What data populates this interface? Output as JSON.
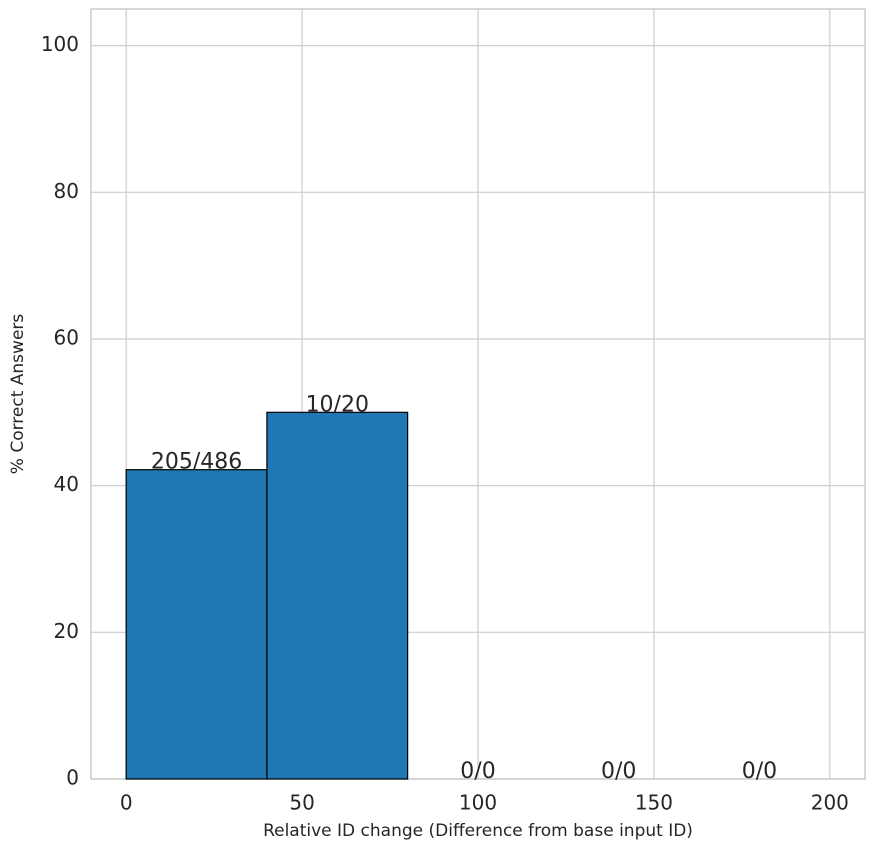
{
  "chart_data": {
    "type": "histogram",
    "x_label": "Relative ID change (Difference from base input ID)",
    "y_label": "% Correct Answers",
    "bins": [
      0,
      40,
      80,
      120,
      160,
      200
    ],
    "values": [
      42.18,
      50,
      0,
      0,
      0
    ],
    "value_labels": [
      "205/486",
      "10/20",
      "0/0",
      "0/0",
      "0/0"
    ],
    "color": "#1f77b4",
    "edge_color": "#000000",
    "xlim": [
      -10,
      210
    ],
    "xticks": [
      0,
      50,
      100,
      150,
      200
    ],
    "ylim": [
      0,
      105
    ],
    "yticks": [
      0,
      20,
      40,
      60,
      80,
      100
    ],
    "grid": true
  }
}
